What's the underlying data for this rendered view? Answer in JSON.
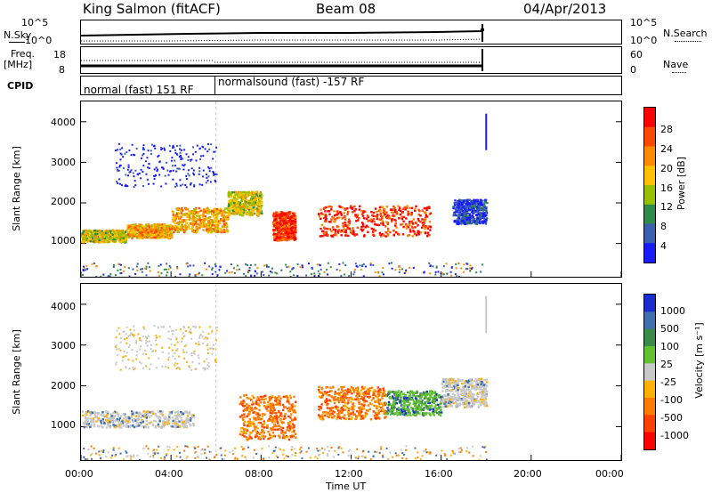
{
  "header": {
    "station": "King Salmon (fitACF)",
    "beam": "Beam 08",
    "date": "04/Apr/2013"
  },
  "top_panels": {
    "nsky_label": "N.Sky",
    "nsearch_label": "N.Search",
    "freq_label_1": "Freq.",
    "freq_label_2": "[MHz]",
    "nave_label": "Nave",
    "cpid_label": "CPID",
    "nsky_ticks": [
      "10^5",
      "10^0"
    ],
    "nsearch_ticks": [
      "10^5",
      "10^0"
    ],
    "freq_ticks": [
      "18",
      "8"
    ],
    "nave_ticks": [
      "60",
      "0"
    ],
    "cpid_1": "normal (fast) 151 RF",
    "cpid_2": "normalsound (fast) -157 RF"
  },
  "axes": {
    "ylabel": "Slant Range [km]",
    "xlabel": "Time UT",
    "x_ticks": [
      "00:00",
      "04:00",
      "08:00",
      "12:00",
      "16:00",
      "20:00",
      "00:00"
    ],
    "y_ticks": [
      "1000",
      "2000",
      "3000",
      "4000"
    ]
  },
  "power_colorbar": {
    "label": "Power [dB]",
    "ticks": [
      "28",
      "24",
      "20",
      "16",
      "12",
      "8",
      "4"
    ],
    "colors": [
      "#ff0000",
      "#ff4800",
      "#ff8a00",
      "#ffc000",
      "#99c000",
      "#2e8a4a",
      "#3a5faf",
      "#1a1aff"
    ]
  },
  "velocity_colorbar": {
    "label": "Velocity [m s⁻¹]",
    "ticks": [
      "1000",
      "500",
      "100",
      "25",
      "-25",
      "-100",
      "-500",
      "-1000"
    ],
    "colors": [
      "#1a2cd0",
      "#3f6fb0",
      "#3b8a4a",
      "#60c030",
      "#c8c8c8",
      "#ffb000",
      "#ff7a00",
      "#ff4000",
      "#ff0000"
    ]
  },
  "chart_data": {
    "type": "heatmap",
    "x_range_hours": [
      0,
      24
    ],
    "y_range_km": [
      180,
      4500
    ],
    "data_end_hour": 18,
    "cpid_change_hour": 6,
    "power_regions": [
      {
        "t": [
          0.0,
          2.0
        ],
        "r": [
          1050,
          1350
        ],
        "level": 16
      },
      {
        "t": [
          2.0,
          4.0
        ],
        "r": [
          1150,
          1500
        ],
        "level": 20
      },
      {
        "t": [
          4.0,
          6.5
        ],
        "r": [
          1300,
          1900
        ],
        "level": 20
      },
      {
        "t": [
          6.5,
          8.0
        ],
        "r": [
          1700,
          2300
        ],
        "level": 16
      },
      {
        "t": [
          8.5,
          9.5
        ],
        "r": [
          1100,
          1800
        ],
        "level": 28
      },
      {
        "t": [
          10.5,
          15.5
        ],
        "r": [
          1200,
          1950
        ],
        "level": 28
      },
      {
        "t": [
          16.5,
          18.0
        ],
        "r": [
          1500,
          2100
        ],
        "level": 8
      }
    ],
    "velocity_regions": [
      {
        "t": [
          0.0,
          5.0
        ],
        "r": [
          1000,
          1400
        ],
        "level": 0
      },
      {
        "t": [
          7.0,
          9.5
        ],
        "r": [
          700,
          1800
        ],
        "level": -500
      },
      {
        "t": [
          10.5,
          13.5
        ],
        "r": [
          1200,
          2000
        ],
        "level": -500
      },
      {
        "t": [
          13.5,
          16.0
        ],
        "r": [
          1300,
          1900
        ],
        "level": 100
      },
      {
        "t": [
          16.0,
          18.0
        ],
        "r": [
          1500,
          2200
        ],
        "level": 0
      }
    ]
  }
}
